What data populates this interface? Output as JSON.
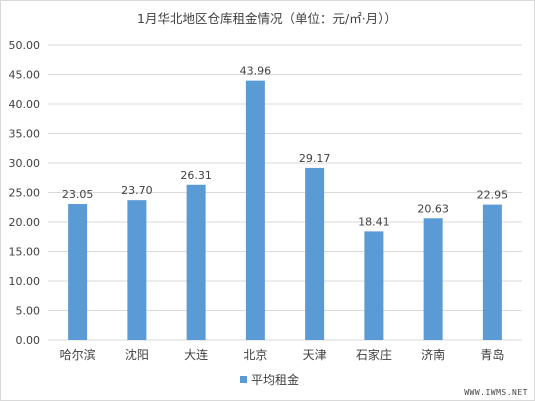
{
  "chart_data": {
    "type": "bar",
    "title": "1月华北地区仓库租金情况（单位：元/㎡·月））",
    "categories": [
      "哈尔滨",
      "沈阳",
      "大连",
      "北京",
      "天津",
      "石家庄",
      "济南",
      "青岛"
    ],
    "series": [
      {
        "name": "平均租金",
        "values": [
          23.05,
          23.7,
          26.31,
          43.96,
          29.17,
          18.41,
          20.63,
          22.95
        ],
        "color": "#5b9bd5"
      }
    ],
    "data_labels": [
      "23.05",
      "23.70",
      "26.31",
      "43.96",
      "29.17",
      "18.41",
      "20.63",
      "22.95"
    ],
    "ylim": [
      0,
      50
    ],
    "yticks": [
      "0.00",
      "5.00",
      "10.00",
      "15.00",
      "20.00",
      "25.00",
      "30.00",
      "35.00",
      "40.00",
      "45.00",
      "50.00"
    ],
    "grid": true,
    "legend_position": "bottom"
  },
  "watermark": "WWW.IWMS.NET",
  "colors": {
    "bar": "#5b9bd5",
    "grid": "#d9d9d9",
    "text": "#404040"
  }
}
